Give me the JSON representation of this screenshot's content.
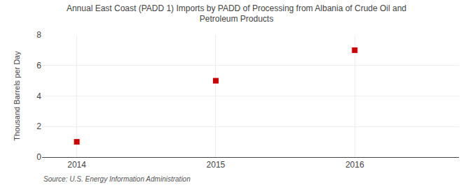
{
  "chart_data": {
    "type": "scatter",
    "title": "Annual East Coast (PADD 1) Imports by PADD of Processing from Albania of Crude Oil and\nPetroleum Products",
    "ylabel": "Thousand Barrels per Day",
    "annotation": "Source: U.S. Energy Information Administration",
    "x": [
      2014,
      2015,
      2016
    ],
    "values": [
      1,
      5,
      7
    ],
    "xlim": [
      2013.75,
      2016.75
    ],
    "ylim": [
      0,
      8
    ],
    "xticks": [
      2014,
      2015,
      2016
    ],
    "yticks": [
      0,
      2,
      4,
      6,
      8
    ],
    "color": "#cc0000",
    "marker": "square",
    "grid": true
  }
}
